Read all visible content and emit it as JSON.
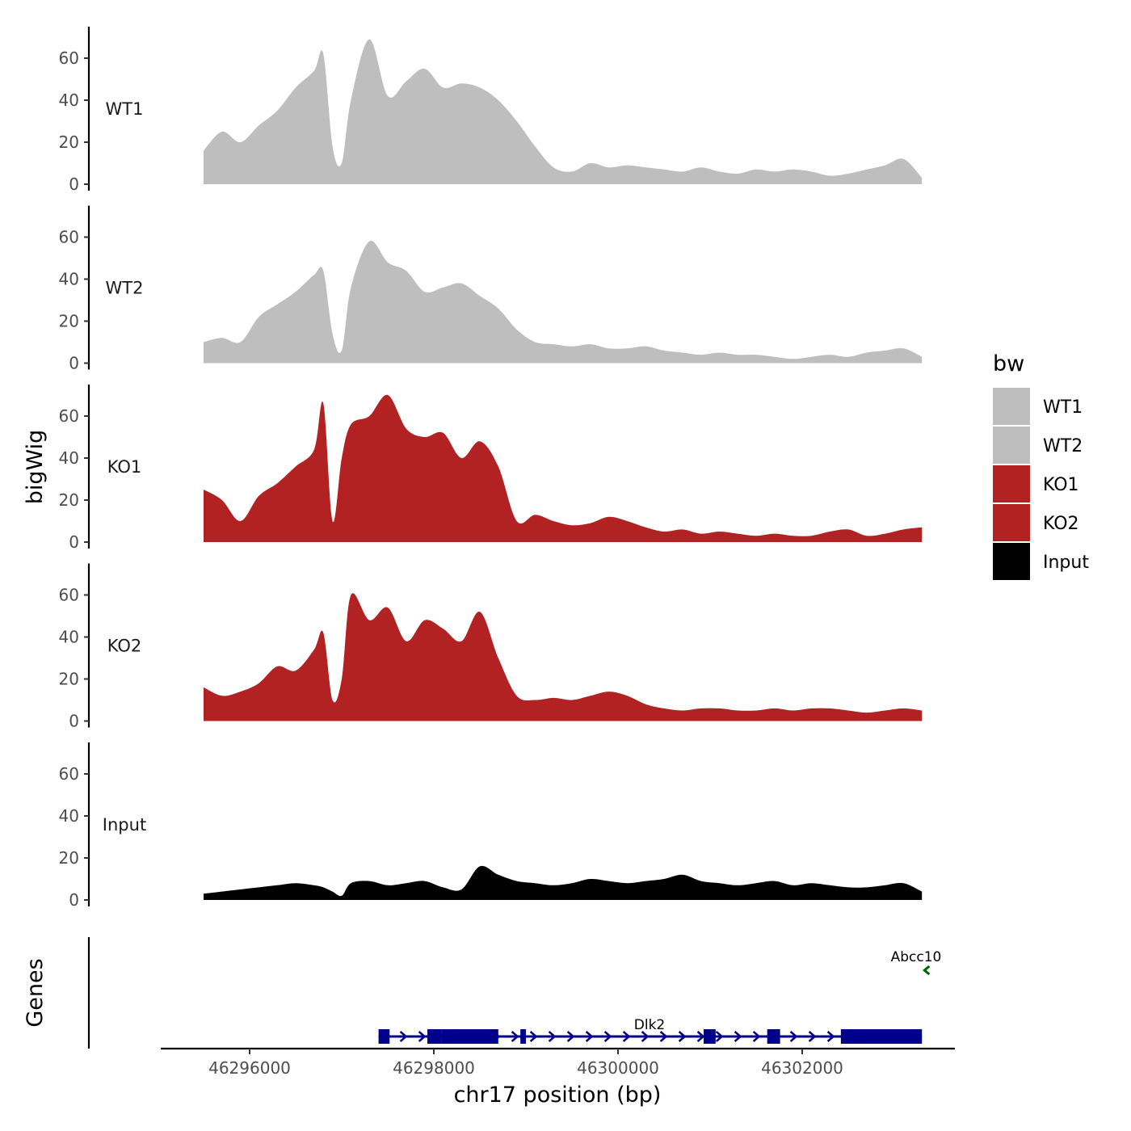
{
  "chart_data": {
    "type": "area",
    "title": "",
    "xlabel": "chr17 position (bp)",
    "ylabel": "bigWig",
    "genes_label": "Genes",
    "xlim": [
      46295000,
      46303700
    ],
    "ylim": [
      0,
      75
    ],
    "x_ticks": [
      46296000,
      46298000,
      46300000,
      46302000
    ],
    "x_tick_labels": [
      "46296000",
      "46298000",
      "46300000",
      "46302000"
    ],
    "y_ticks": [
      0,
      20,
      40,
      60
    ],
    "y_tick_labels": [
      "0",
      "20",
      "40",
      "60"
    ],
    "x": [
      46295500,
      46295700,
      46295900,
      46296100,
      46296300,
      46296500,
      46296700,
      46296800,
      46296900,
      46297000,
      46297100,
      46297300,
      46297500,
      46297700,
      46297900,
      46298100,
      46298300,
      46298500,
      46298700,
      46298900,
      46299100,
      46299300,
      46299500,
      46299700,
      46299900,
      46300100,
      46300300,
      46300500,
      46300700,
      46300900,
      46301100,
      46301300,
      46301500,
      46301700,
      46301900,
      46302100,
      46302300,
      46302500,
      46302700,
      46302900,
      46303100,
      46303300
    ],
    "series": [
      {
        "name": "WT1",
        "color": "#bebebe",
        "values": [
          16,
          25,
          20,
          28,
          35,
          46,
          54,
          62,
          18,
          10,
          40,
          69,
          42,
          49,
          55,
          46,
          48,
          46,
          40,
          30,
          18,
          8,
          6,
          10,
          8,
          9,
          8,
          7,
          6,
          8,
          6,
          5,
          7,
          6,
          7,
          6,
          4,
          5,
          7,
          9,
          12,
          3
        ]
      },
      {
        "name": "WT2",
        "color": "#bebebe",
        "values": [
          10,
          12,
          10,
          22,
          28,
          34,
          42,
          44,
          14,
          6,
          36,
          58,
          48,
          44,
          34,
          36,
          38,
          32,
          26,
          16,
          10,
          9,
          8,
          9,
          7,
          7,
          8,
          6,
          5,
          4,
          5,
          4,
          4,
          3,
          2,
          3,
          4,
          3,
          5,
          6,
          7,
          3
        ]
      },
      {
        "name": "KO1",
        "color": "#b22222",
        "values": [
          25,
          20,
          10,
          22,
          28,
          36,
          44,
          66,
          10,
          40,
          56,
          60,
          70,
          54,
          50,
          52,
          40,
          48,
          36,
          10,
          13,
          10,
          8,
          9,
          12,
          10,
          7,
          5,
          6,
          4,
          5,
          4,
          3,
          4,
          3,
          3,
          5,
          6,
          3,
          4,
          6,
          7
        ]
      },
      {
        "name": "KO2",
        "color": "#b22222",
        "values": [
          16,
          12,
          14,
          18,
          26,
          24,
          34,
          42,
          10,
          20,
          60,
          48,
          54,
          38,
          48,
          44,
          38,
          52,
          30,
          12,
          10,
          11,
          10,
          12,
          14,
          12,
          8,
          6,
          5,
          6,
          6,
          5,
          5,
          6,
          5,
          6,
          6,
          5,
          4,
          5,
          6,
          5
        ]
      },
      {
        "name": "Input",
        "color": "#000000",
        "values": [
          3,
          4,
          5,
          6,
          7,
          8,
          7,
          6,
          4,
          2,
          8,
          9,
          7,
          8,
          9,
          6,
          5,
          16,
          12,
          9,
          8,
          7,
          8,
          10,
          9,
          8,
          9,
          10,
          12,
          9,
          8,
          7,
          8,
          9,
          7,
          8,
          7,
          6,
          6,
          7,
          8,
          4
        ]
      }
    ],
    "legend": {
      "title": "bw",
      "position": "right",
      "entries": [
        {
          "label": "WT1",
          "color": "#bebebe"
        },
        {
          "label": "WT2",
          "color": "#bebebe"
        },
        {
          "label": "KO1",
          "color": "#b22222"
        },
        {
          "label": "KO2",
          "color": "#b22222"
        },
        {
          "label": "Input",
          "color": "#000000"
        }
      ]
    },
    "genes": [
      {
        "name": "Dlk2",
        "strand": "+",
        "start": 46297400,
        "end": 46303300,
        "color": "#00008b",
        "exons": [
          [
            46297400,
            46297520
          ],
          [
            46297930,
            46298080
          ],
          [
            46298080,
            46298700
          ],
          [
            46298940,
            46299000
          ],
          [
            46300930,
            46301060
          ],
          [
            46301620,
            46301760
          ],
          [
            46302420,
            46303300
          ]
        ]
      },
      {
        "name": "Abcc10",
        "strand": "-",
        "start": 46303310,
        "end": 46303360,
        "color": "#006400",
        "exons": []
      }
    ]
  }
}
